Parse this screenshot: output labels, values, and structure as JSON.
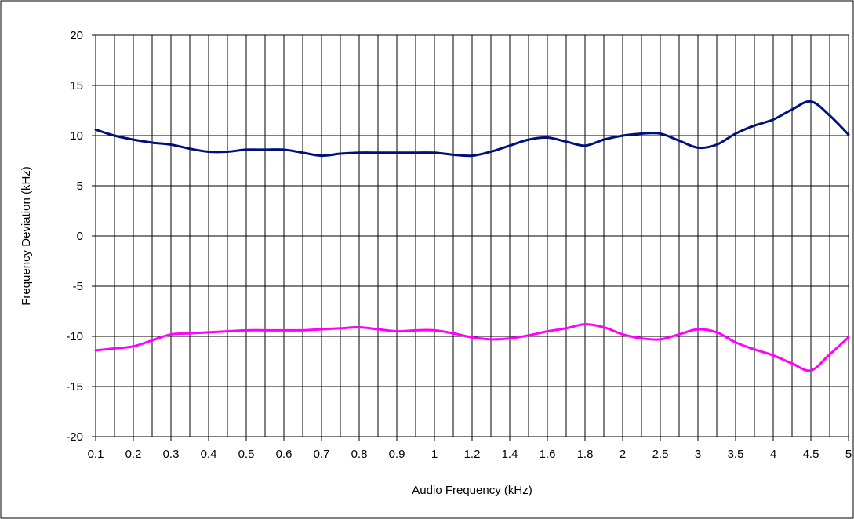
{
  "chart_data": {
    "type": "line",
    "title": "",
    "xlabel": "Audio Frequency (kHz)",
    "ylabel": "Frequency Deviation (kHz)",
    "ylim": [
      -20,
      20
    ],
    "yticks": [
      "20",
      "15",
      "10",
      "5",
      "0",
      "-5",
      "-10",
      "-15",
      "-20"
    ],
    "grid": true,
    "legend": "none",
    "categories": [
      "0.1",
      "0.2",
      "0.3",
      "0.4",
      "0.5",
      "0.6",
      "0.7",
      "0.8",
      "0.9",
      "1",
      "1.2",
      "1.4",
      "1.6",
      "1.8",
      "2",
      "2.5",
      "3",
      "3.5",
      "4",
      "4.5",
      "5"
    ],
    "x_grid_steps": 40,
    "series": [
      {
        "color": "#00107a",
        "x": [
          0,
          1,
          2,
          3,
          4,
          5,
          6,
          7,
          8,
          9,
          10,
          11,
          12,
          13,
          14,
          15,
          16,
          17,
          18,
          19,
          20,
          21,
          22,
          23,
          24,
          25,
          26,
          27,
          28,
          29,
          30,
          31,
          32,
          33,
          34,
          35,
          36,
          37,
          38,
          39,
          40
        ],
        "values": [
          10.6,
          10.0,
          9.6,
          9.3,
          9.1,
          8.7,
          8.4,
          8.4,
          8.6,
          8.6,
          8.6,
          8.3,
          8.0,
          8.2,
          8.3,
          8.3,
          8.3,
          8.3,
          8.3,
          8.1,
          8.0,
          8.4,
          9.0,
          9.6,
          9.8,
          9.4,
          9.0,
          9.6,
          10.0,
          10.2,
          10.2,
          9.5,
          8.8,
          9.1,
          10.2,
          11.0,
          11.6,
          12.6,
          13.4,
          12.0,
          10.1
        ]
      },
      {
        "color": "#ff00ff",
        "x": [
          0,
          1,
          2,
          3,
          4,
          5,
          6,
          7,
          8,
          9,
          10,
          11,
          12,
          13,
          14,
          15,
          16,
          17,
          18,
          19,
          20,
          21,
          22,
          23,
          24,
          25,
          26,
          27,
          28,
          29,
          30,
          31,
          32,
          33,
          34,
          35,
          36,
          37,
          38,
          39,
          40
        ],
        "values": [
          -11.4,
          -11.2,
          -11.0,
          -10.4,
          -9.8,
          -9.7,
          -9.6,
          -9.5,
          -9.4,
          -9.4,
          -9.4,
          -9.4,
          -9.3,
          -9.2,
          -9.1,
          -9.3,
          -9.5,
          -9.4,
          -9.4,
          -9.7,
          -10.1,
          -10.3,
          -10.2,
          -9.9,
          -9.5,
          -9.2,
          -8.8,
          -9.1,
          -9.8,
          -10.2,
          -10.3,
          -9.8,
          -9.3,
          -9.6,
          -10.6,
          -11.3,
          -11.9,
          -12.7,
          -13.4,
          -11.8,
          -10.1
        ]
      }
    ]
  }
}
